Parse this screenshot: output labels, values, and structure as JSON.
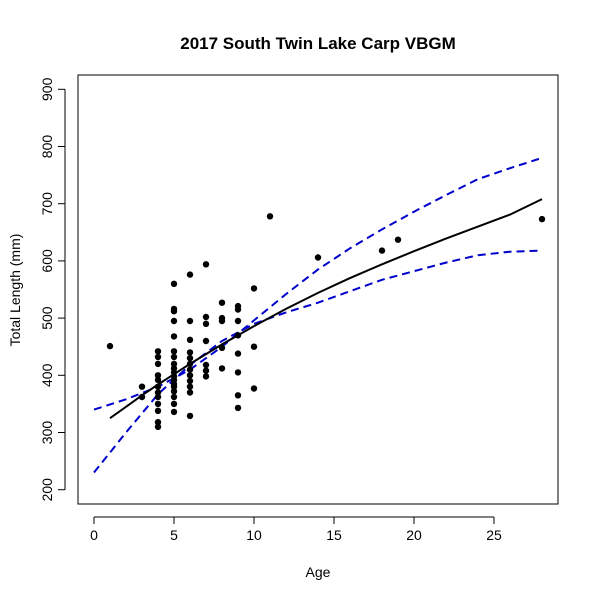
{
  "chart_data": {
    "type": "scatter",
    "title": "2017 South Twin Lake Carp VBGM",
    "xlabel": "Age",
    "ylabel": "Total Length (mm)",
    "xlim": [
      -1,
      29
    ],
    "ylim": [
      175,
      925
    ],
    "x_ticks": [
      0,
      5,
      10,
      15,
      20,
      25
    ],
    "y_ticks": [
      200,
      300,
      400,
      500,
      600,
      700,
      800,
      900
    ],
    "x_tick_labels": [
      "0",
      "5",
      "10",
      "15",
      "20",
      "25"
    ],
    "y_tick_labels": [
      "200",
      "300",
      "400",
      "500",
      "600",
      "700",
      "800",
      "900"
    ],
    "grid": false,
    "points": [
      {
        "x": 1,
        "y": 451
      },
      {
        "x": 3,
        "y": 362
      },
      {
        "x": 3,
        "y": 380
      },
      {
        "x": 4,
        "y": 310
      },
      {
        "x": 4,
        "y": 318
      },
      {
        "x": 4,
        "y": 338
      },
      {
        "x": 4,
        "y": 350
      },
      {
        "x": 4,
        "y": 362
      },
      {
        "x": 4,
        "y": 370
      },
      {
        "x": 4,
        "y": 380
      },
      {
        "x": 4,
        "y": 392
      },
      {
        "x": 4,
        "y": 400
      },
      {
        "x": 4,
        "y": 420
      },
      {
        "x": 4,
        "y": 432
      },
      {
        "x": 4,
        "y": 442
      },
      {
        "x": 5,
        "y": 336
      },
      {
        "x": 5,
        "y": 350
      },
      {
        "x": 5,
        "y": 362
      },
      {
        "x": 5,
        "y": 372
      },
      {
        "x": 5,
        "y": 380
      },
      {
        "x": 5,
        "y": 385
      },
      {
        "x": 5,
        "y": 392
      },
      {
        "x": 5,
        "y": 398
      },
      {
        "x": 5,
        "y": 405
      },
      {
        "x": 5,
        "y": 412
      },
      {
        "x": 5,
        "y": 420
      },
      {
        "x": 5,
        "y": 432
      },
      {
        "x": 5,
        "y": 442
      },
      {
        "x": 5,
        "y": 468
      },
      {
        "x": 5,
        "y": 495
      },
      {
        "x": 5,
        "y": 512
      },
      {
        "x": 5,
        "y": 516
      },
      {
        "x": 5,
        "y": 560
      },
      {
        "x": 6,
        "y": 329
      },
      {
        "x": 6,
        "y": 370
      },
      {
        "x": 6,
        "y": 380
      },
      {
        "x": 6,
        "y": 390
      },
      {
        "x": 6,
        "y": 400
      },
      {
        "x": 6,
        "y": 410
      },
      {
        "x": 6,
        "y": 420
      },
      {
        "x": 6,
        "y": 430
      },
      {
        "x": 6,
        "y": 440
      },
      {
        "x": 6,
        "y": 462
      },
      {
        "x": 6,
        "y": 495
      },
      {
        "x": 6,
        "y": 576
      },
      {
        "x": 7,
        "y": 398
      },
      {
        "x": 7,
        "y": 408
      },
      {
        "x": 7,
        "y": 418
      },
      {
        "x": 7,
        "y": 460
      },
      {
        "x": 7,
        "y": 490
      },
      {
        "x": 7,
        "y": 502
      },
      {
        "x": 7,
        "y": 594
      },
      {
        "x": 8,
        "y": 412
      },
      {
        "x": 8,
        "y": 448
      },
      {
        "x": 8,
        "y": 495
      },
      {
        "x": 8,
        "y": 500
      },
      {
        "x": 8,
        "y": 527
      },
      {
        "x": 9,
        "y": 343
      },
      {
        "x": 9,
        "y": 365
      },
      {
        "x": 9,
        "y": 405
      },
      {
        "x": 9,
        "y": 438
      },
      {
        "x": 9,
        "y": 470
      },
      {
        "x": 9,
        "y": 495
      },
      {
        "x": 9,
        "y": 515
      },
      {
        "x": 9,
        "y": 521
      },
      {
        "x": 10,
        "y": 377
      },
      {
        "x": 10,
        "y": 450
      },
      {
        "x": 10,
        "y": 552
      },
      {
        "x": 11,
        "y": 678
      },
      {
        "x": 14,
        "y": 606
      },
      {
        "x": 18,
        "y": 618
      },
      {
        "x": 19,
        "y": 637
      },
      {
        "x": 28,
        "y": 673
      }
    ],
    "fit_line": {
      "style": "solid",
      "color": "#000000",
      "x": [
        1,
        2,
        3,
        4,
        5,
        6,
        8,
        10,
        12,
        14,
        16,
        18,
        20,
        22,
        24,
        26,
        28
      ],
      "y": [
        325,
        345,
        365,
        384,
        402,
        420,
        454,
        486,
        516,
        544,
        570,
        594,
        617,
        639,
        660,
        681,
        708
      ]
    },
    "confidence_bands": [
      {
        "style": "dashed",
        "color": "#0000cc",
        "x": [
          0,
          2,
          4,
          6,
          8,
          10,
          12,
          14,
          16,
          18,
          20,
          22,
          24,
          26,
          28
        ],
        "y": [
          340,
          358,
          380,
          410,
          450,
          496,
          542,
          585,
          622,
          655,
          686,
          715,
          743,
          762,
          780
        ]
      },
      {
        "style": "dashed",
        "color": "#0000cc",
        "x": [
          0,
          2,
          4,
          6,
          8,
          10,
          12,
          14,
          16,
          18,
          20,
          22,
          24,
          26,
          28
        ],
        "y": [
          230,
          300,
          367,
          418,
          460,
          490,
          510,
          527,
          547,
          567,
          582,
          597,
          610,
          616,
          618
        ]
      }
    ]
  }
}
